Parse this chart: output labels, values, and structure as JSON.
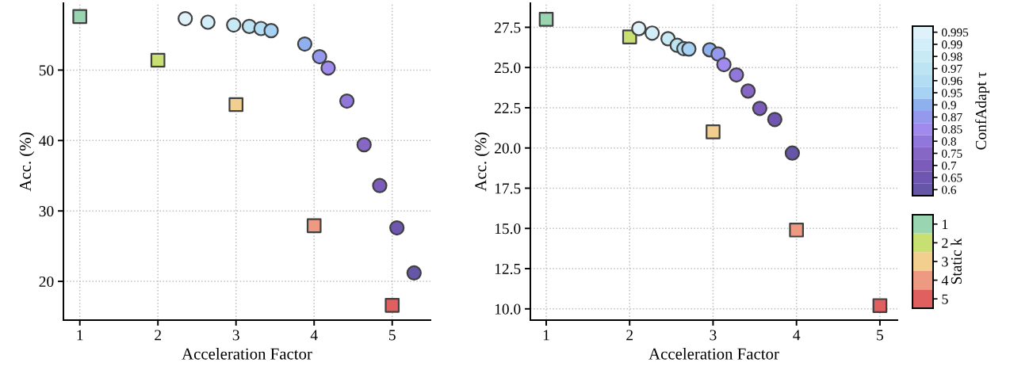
{
  "chart_data": [
    {
      "type": "scatter",
      "xlabel": "Acceleration Factor",
      "ylabel": "Acc. (%)",
      "xlim": [
        0.79,
        5.49
      ],
      "ylim": [
        14.5,
        59.5
      ],
      "xticks": [
        1,
        2,
        3,
        4,
        5
      ],
      "yticks": [
        20,
        30,
        40,
        50
      ],
      "grid": true,
      "series": [
        {
          "marker": "square",
          "x": [
            1,
            2,
            3,
            4,
            5
          ],
          "values": [
            57.6,
            51.4,
            45.1,
            27.9,
            16.6
          ],
          "colors": [
            "#98d5b0",
            "#c8df72",
            "#f2cf8f",
            "#ee9a82",
            "#e06060"
          ]
        },
        {
          "marker": "circle",
          "x": [
            2.35,
            2.64,
            2.97,
            3.17,
            3.32,
            3.45,
            3.88,
            4.07,
            4.18,
            4.42,
            4.64,
            4.84,
            5.06,
            5.28
          ],
          "values": [
            57.3,
            56.8,
            56.4,
            56.2,
            55.9,
            55.6,
            53.7,
            51.9,
            50.3,
            45.6,
            39.4,
            33.6,
            27.6,
            21.2
          ],
          "colors": [
            "#dff2fa",
            "#d2eef8",
            "#c8eaf5",
            "#bde4f2",
            "#b3ddf2",
            "#a8d2f4",
            "#8fb0ee",
            "#9499ee",
            "#a08aee",
            "#9177dc",
            "#8767c6",
            "#7b5cba",
            "#6f56b0",
            "#6656a8"
          ]
        }
      ]
    },
    {
      "type": "scatter",
      "xlabel": "Acceleration Factor",
      "ylabel": "Acc. (%)",
      "xlim": [
        0.81,
        5.21
      ],
      "ylim": [
        9.3,
        29.0
      ],
      "xticks": [
        1,
        2,
        3,
        4,
        5
      ],
      "yticks": [
        {
          "value": 10,
          "label": "10.0"
        },
        12.5,
        {
          "value": 15,
          "label": "15.0"
        },
        17.5,
        {
          "value": 20,
          "label": "20.0"
        },
        22.5,
        {
          "value": 25,
          "label": "25.0"
        },
        27.5
      ],
      "grid": true,
      "series": [
        {
          "marker": "square",
          "x": [
            1,
            2,
            3,
            4,
            5
          ],
          "values": [
            28.0,
            26.9,
            21.0,
            14.9,
            10.2
          ],
          "colors": [
            "#98d5b0",
            "#c8df72",
            "#f2cf8f",
            "#ee9a82",
            "#e06060"
          ]
        },
        {
          "marker": "circle",
          "x": [
            2.11,
            2.27,
            2.46,
            2.57,
            2.65,
            2.71,
            2.96,
            3.06,
            3.13,
            3.28,
            3.42,
            3.56,
            3.74,
            3.95
          ],
          "values": [
            27.42,
            27.14,
            26.79,
            26.38,
            26.17,
            26.15,
            26.1,
            25.84,
            25.18,
            24.54,
            23.54,
            22.46,
            21.77,
            19.68
          ],
          "colors": [
            "#dff2fa",
            "#d2eef8",
            "#c8eaf5",
            "#bde4f2",
            "#b3ddf2",
            "#a8d2f4",
            "#8fb0ee",
            "#9499ee",
            "#a08aee",
            "#9177dc",
            "#8767c6",
            "#7b5cba",
            "#6f56b0",
            "#6656a8"
          ]
        }
      ]
    },
    {
      "type": "other",
      "ylabel": "ConfAdapt τ",
      "categories": [
        "0.995",
        "0.99",
        "0.98",
        "0.97",
        "0.96",
        "0.95",
        "0.9",
        "0.87",
        "0.85",
        "0.8",
        "0.75",
        "0.7",
        "0.65",
        "0.6"
      ],
      "colors": [
        "#dff2fa",
        "#d2eef8",
        "#c8eaf5",
        "#bde4f2",
        "#b3ddf2",
        "#a8d2f4",
        "#8fb0ee",
        "#9499ee",
        "#a08aee",
        "#9177dc",
        "#8767c6",
        "#7b5cba",
        "#6f56b0",
        "#6656a8"
      ]
    },
    {
      "type": "other",
      "ylabel": "Static k",
      "categories": [
        "1",
        "2",
        "3",
        "4",
        "5"
      ],
      "colors": [
        "#98d5b0",
        "#c8df72",
        "#f2cf8f",
        "#ee9a82",
        "#e06060"
      ]
    }
  ]
}
